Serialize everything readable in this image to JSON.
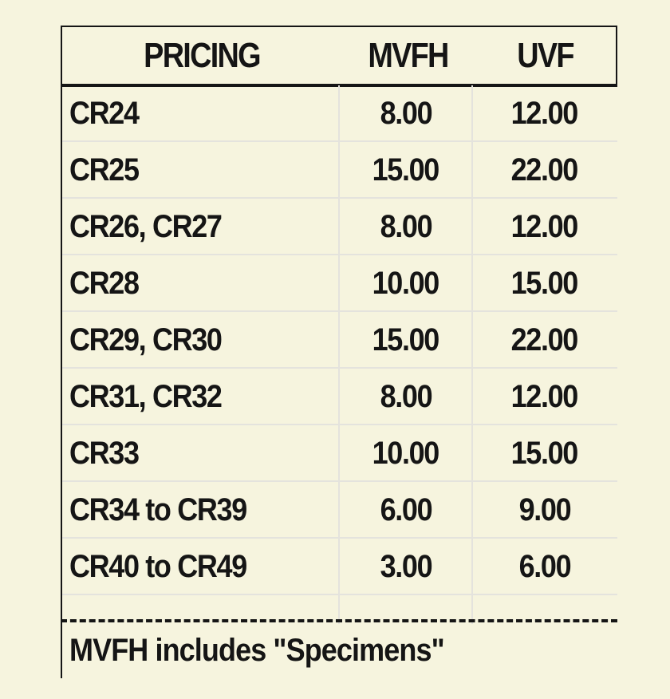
{
  "table": {
    "headers": [
      "PRICING",
      "MVFH",
      "UVF"
    ],
    "rows": [
      {
        "name": "CR24",
        "mvfh": "8.00",
        "uvf": "12.00"
      },
      {
        "name": "CR25",
        "mvfh": "15.00",
        "uvf": "22.00"
      },
      {
        "name": "CR26, CR27",
        "mvfh": "8.00",
        "uvf": "12.00"
      },
      {
        "name": "CR28",
        "mvfh": "10.00",
        "uvf": "15.00"
      },
      {
        "name": "CR29, CR30",
        "mvfh": "15.00",
        "uvf": "22.00"
      },
      {
        "name": "CR31, CR32",
        "mvfh": "8.00",
        "uvf": "12.00"
      },
      {
        "name": "CR33",
        "mvfh": "10.00",
        "uvf": "15.00"
      },
      {
        "name": "CR34 to CR39",
        "mvfh": "6.00",
        "uvf": "9.00"
      },
      {
        "name": "CR40 to CR49",
        "mvfh": "3.00",
        "uvf": "6.00"
      }
    ],
    "footnote": "MVFH includes \"Specimens\""
  },
  "colors": {
    "background": "#f6f4de",
    "text": "#151515",
    "grid": "#e4e3dd"
  }
}
